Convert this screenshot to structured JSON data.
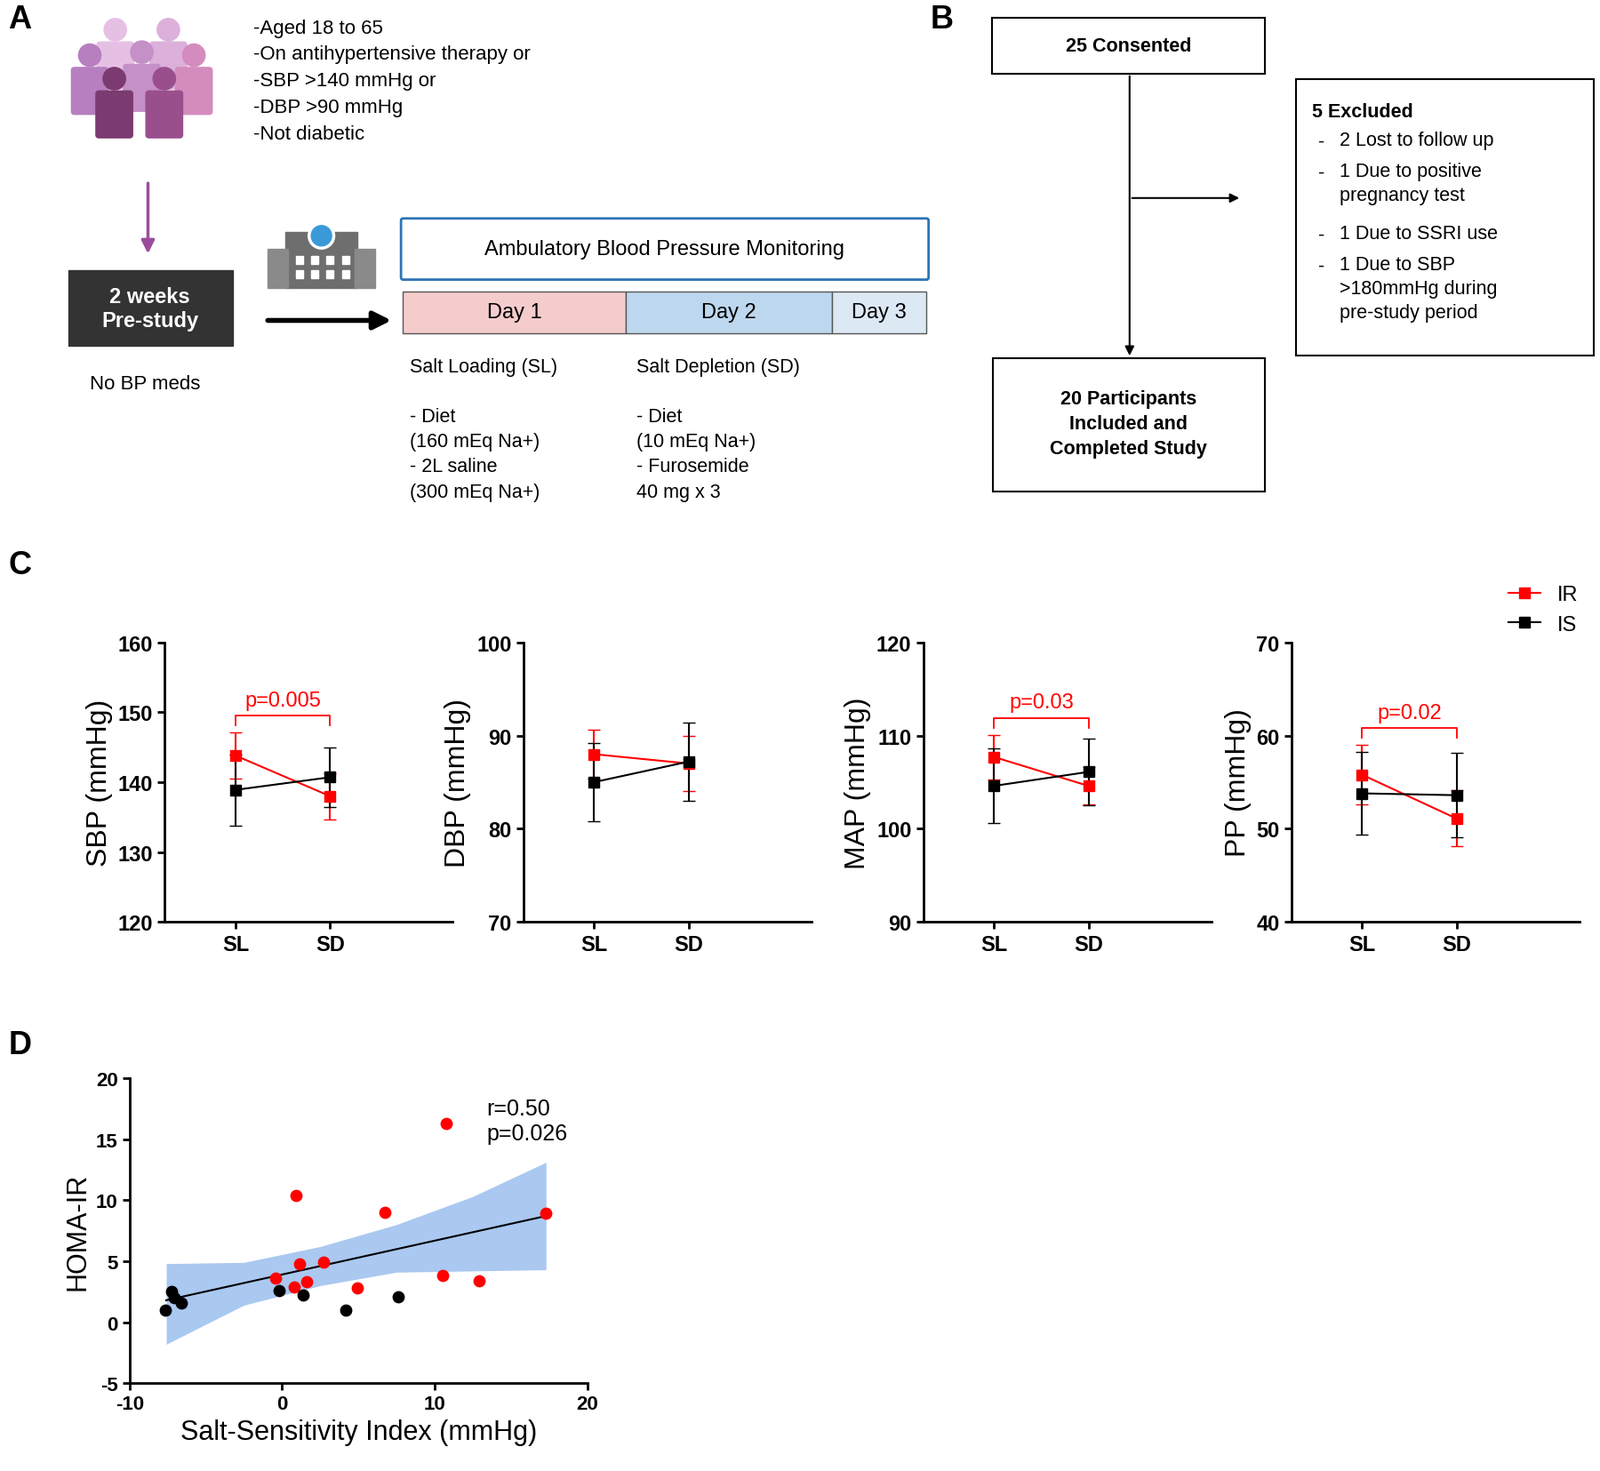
{
  "diagram_A": {
    "panel_label": "A",
    "criteria": [
      "-Aged 18 to 65",
      "-On antihypertensive therapy or",
      "-SBP >140 mmHg or",
      "-DBP >90 mmHg",
      "-Not diabetic"
    ],
    "prestudy_box": "2 weeks\nPre-study",
    "prestudy_note": "No BP meds",
    "monitoring_box": "Ambulatory Blood Pressure Monitoring",
    "days": [
      "Day 1",
      "Day 2",
      "Day 3"
    ],
    "salt_loading": {
      "title": "Salt Loading (SL)",
      "details": "- Diet\n(160 mEq Na+)\n- 2L saline\n(300 mEq Na+)"
    },
    "salt_depletion": {
      "title": "Salt Depletion (SD)",
      "details": "- Diet\n(10 mEq Na+)\n- Furosemide\n40 mg x 3"
    }
  },
  "flowchart_B": {
    "panel_label": "B",
    "consented": "25 Consented",
    "excluded_title": "5 Excluded",
    "bullet": "-",
    "excluded_items": [
      "2 Lost to follow up",
      "1 Due to positive\npregnancy test",
      "1 Due to SSRI use",
      "1 Due to SBP\n>180mmHg during\npre-study period"
    ],
    "included": "20 Participants\nIncluded and\nCompleted Study"
  },
  "chart_data": [
    {
      "panel_label": "C",
      "type": "line",
      "ylabel": "SBP (mmHg)",
      "categories": [
        "SL",
        "SD"
      ],
      "ylim": [
        120,
        160
      ],
      "yticks": [
        120,
        130,
        140,
        150,
        160
      ],
      "series": [
        {
          "name": "IR",
          "color": "#ff0000",
          "marker": "square",
          "values": [
            143.8,
            138.0
          ],
          "errors": [
            3.3,
            3.3
          ]
        },
        {
          "name": "IS",
          "color": "#000000",
          "marker": "square",
          "values": [
            138.9,
            140.7
          ],
          "errors": [
            5.1,
            4.3
          ]
        }
      ],
      "annotation": {
        "text": "p=0.005",
        "color": "#ff0000"
      }
    },
    {
      "type": "line",
      "ylabel": "DBP (mmHg)",
      "categories": [
        "SL",
        "SD"
      ],
      "ylim": [
        70,
        100
      ],
      "yticks": [
        70,
        80,
        90,
        100
      ],
      "series": [
        {
          "name": "IR",
          "color": "#ff0000",
          "marker": "square",
          "values": [
            88.0,
            87.0
          ],
          "errors": [
            2.6,
            3.0
          ]
        },
        {
          "name": "IS",
          "color": "#000000",
          "marker": "square",
          "values": [
            85.0,
            87.2
          ],
          "errors": [
            4.2,
            4.2
          ]
        }
      ]
    },
    {
      "type": "line",
      "ylabel": "MAP (mmHg)",
      "categories": [
        "SL",
        "SD"
      ],
      "ylim": [
        90,
        120
      ],
      "yticks": [
        90,
        100,
        110,
        120
      ],
      "series": [
        {
          "name": "IR",
          "color": "#ff0000",
          "marker": "square",
          "values": [
            107.7,
            104.6
          ],
          "errors": [
            2.4,
            2.0
          ]
        },
        {
          "name": "IS",
          "color": "#000000",
          "marker": "square",
          "values": [
            104.6,
            106.1
          ],
          "errors": [
            4.0,
            3.6
          ]
        }
      ],
      "annotation": {
        "text": "p=0.03",
        "color": "#ff0000"
      }
    },
    {
      "type": "line",
      "ylabel": "PP (mmHg)",
      "categories": [
        "SL",
        "SD"
      ],
      "ylim": [
        40,
        70
      ],
      "yticks": [
        40,
        50,
        60,
        70
      ],
      "legend": "upper right",
      "series": [
        {
          "name": "IR",
          "color": "#ff0000",
          "marker": "square",
          "values": [
            55.8,
            51.1
          ],
          "errors": [
            3.2,
            3.0
          ]
        },
        {
          "name": "IS",
          "color": "#000000",
          "marker": "square",
          "values": [
            53.8,
            53.6
          ],
          "errors": [
            4.4,
            4.5
          ]
        }
      ],
      "annotation": {
        "text": "p=0.02",
        "color": "#ff0000"
      }
    },
    {
      "panel_label": "D",
      "type": "scatter",
      "xlabel": "Salt-Sensitivity Index (mmHg)",
      "ylabel": "HOMA-IR",
      "xlim": [
        -10,
        20
      ],
      "xticks": [
        -10,
        0,
        10,
        20
      ],
      "ylim": [
        -5,
        20
      ],
      "yticks": [
        -5,
        0,
        5,
        10,
        15,
        20
      ],
      "legend": "upper right",
      "series": [
        {
          "name": "r=0.50\np=0.026",
          "color": "#ff0000",
          "marker": "circle",
          "x": [
            0.92,
            6.75,
            17.3,
            2.73,
            1.12,
            0.78,
            1.59,
            4.94,
            10.5,
            12.9,
            -0.42
          ],
          "y": [
            10.4,
            9.0,
            8.9,
            4.9,
            4.8,
            2.9,
            3.3,
            2.8,
            3.8,
            3.4,
            3.6
          ]
        },
        {
          "color": "#000000",
          "marker": "circle",
          "x": [
            -7.25,
            -7.1,
            -6.6,
            -7.65,
            -0.22,
            1.39,
            4.2,
            7.6
          ],
          "y": [
            2.5,
            2.0,
            1.6,
            1.0,
            2.6,
            2.2,
            1.0,
            2.1
          ]
        }
      ],
      "fit_line": {
        "color": "#000000",
        "x": [
          -7.6,
          17.3
        ],
        "y": [
          1.8,
          8.7
        ]
      },
      "confidence_band": {
        "color": "#aac8f0",
        "x": [
          -7.6,
          -2.5,
          2.5,
          7.5,
          12.5,
          17.3
        ],
        "lower": [
          -1.8,
          1.4,
          3.0,
          4.1,
          4.2,
          4.3
        ],
        "upper": [
          4.8,
          4.9,
          6.2,
          8.0,
          10.3,
          13.1
        ]
      }
    }
  ]
}
